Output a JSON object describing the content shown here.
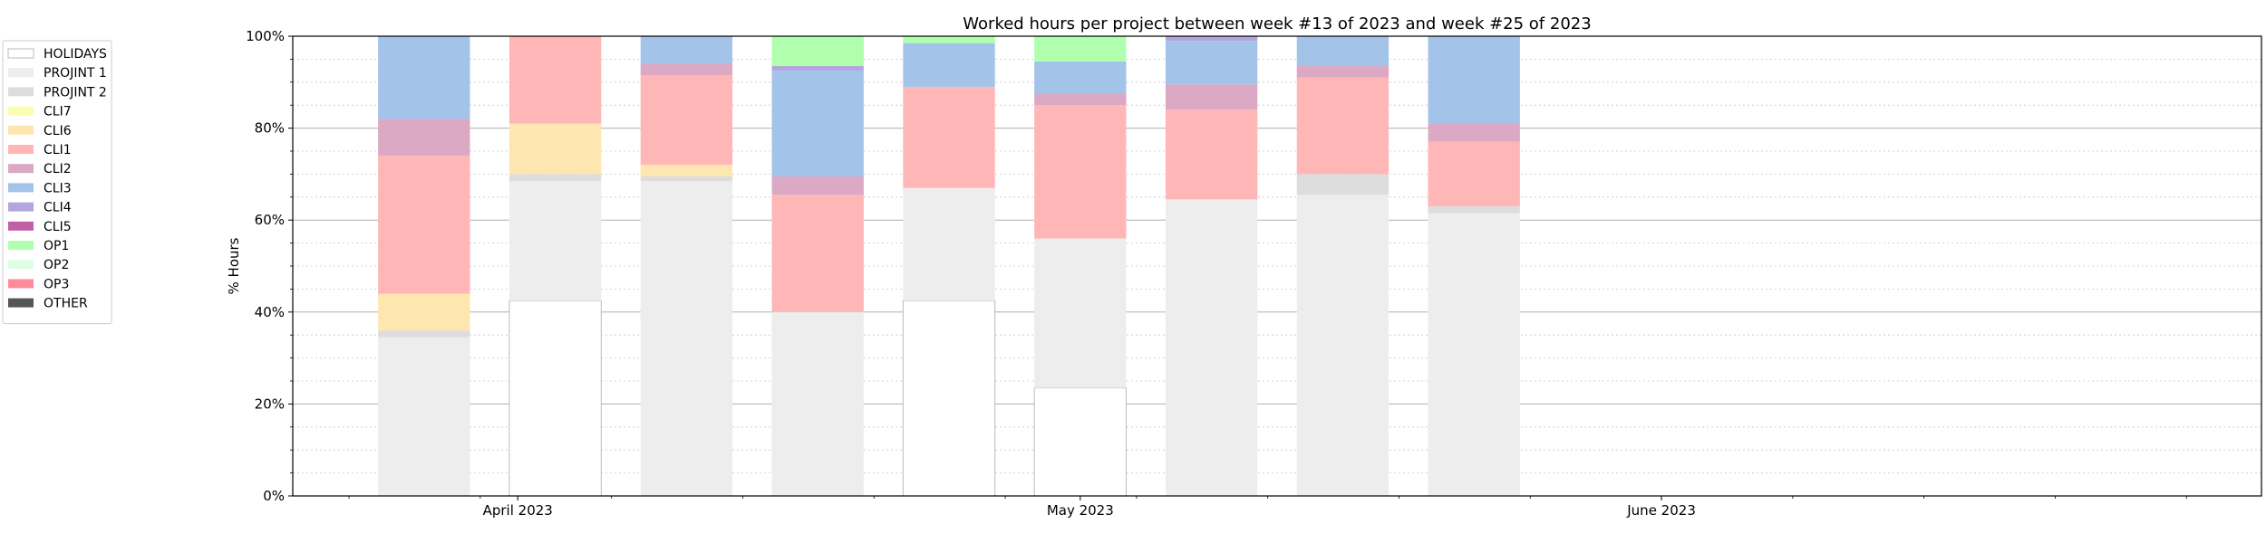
{
  "chart_data": {
    "type": "bar",
    "stacked": true,
    "title": "Worked hours per project between week #13 of 2023 and week #25 of 2023",
    "ylabel": "% Hours",
    "xlabel": "",
    "ylim": [
      0,
      100
    ],
    "y_ticks": [
      0,
      20,
      40,
      60,
      80,
      100
    ],
    "y_tick_labels": [
      "0%",
      "20%",
      "40%",
      "60%",
      "80%",
      "100%"
    ],
    "x_range": [
      "2023-03-20",
      "2023-07-03"
    ],
    "x_ticks": [
      {
        "date": "2023-04-01",
        "label": "April 2023"
      },
      {
        "date": "2023-05-01",
        "label": "May 2023"
      },
      {
        "date": "2023-06-01",
        "label": "June 2023"
      }
    ],
    "grid": {
      "major": true,
      "minor": true
    },
    "legend_position": "outside-left",
    "weeks": [
      "2023-03-27",
      "2023-04-03",
      "2023-04-10",
      "2023-04-17",
      "2023-04-24",
      "2023-05-01",
      "2023-05-08",
      "2023-05-15",
      "2023-05-22"
    ],
    "series": [
      {
        "name": "HOLIDAYS",
        "color": "#ffffff",
        "edge": "#bbbbbb",
        "values": [
          0,
          42.5,
          0,
          0,
          42.5,
          23.5,
          0,
          0,
          0
        ]
      },
      {
        "name": "PROJINT 1",
        "color": "#ededed",
        "values": [
          34.5,
          26,
          68.5,
          40,
          24.5,
          32.5,
          64.5,
          65.5,
          61.5
        ]
      },
      {
        "name": "PROJINT 2",
        "color": "#dddddd",
        "values": [
          1.5,
          1.5,
          1,
          0,
          0,
          0,
          0,
          4.5,
          1.5
        ]
      },
      {
        "name": "CLI7",
        "color": "#f8ffb0",
        "values": [
          0,
          0,
          0,
          0,
          0,
          0,
          0,
          0,
          0
        ]
      },
      {
        "name": "CLI6",
        "color": "#fde6b0",
        "values": [
          8,
          11,
          2.5,
          0,
          0,
          0,
          0,
          0,
          0
        ]
      },
      {
        "name": "CLI1",
        "color": "#ffb6b6",
        "values": [
          30,
          19,
          19.5,
          25.5,
          22,
          29,
          19.5,
          21,
          14
        ]
      },
      {
        "name": "CLI2",
        "color": "#dca9c4",
        "values": [
          8,
          0,
          2.5,
          4,
          0,
          2.5,
          5.5,
          2.5,
          4
        ]
      },
      {
        "name": "CLI3",
        "color": "#a3c4e8",
        "values": [
          18,
          0,
          6,
          23,
          9.5,
          7,
          9.5,
          6.5,
          19
        ]
      },
      {
        "name": "CLI4",
        "color": "#b3a6dc",
        "values": [
          0,
          0,
          0,
          1,
          0,
          0,
          1,
          0,
          0
        ]
      },
      {
        "name": "CLI5",
        "color": "#bf5fa6",
        "values": [
          0,
          0,
          0,
          0,
          0,
          0,
          0,
          0,
          0
        ]
      },
      {
        "name": "OP1",
        "color": "#afffaf",
        "values": [
          0,
          0,
          0,
          6.5,
          1.5,
          5.5,
          0,
          0,
          0
        ]
      },
      {
        "name": "OP2",
        "color": "#dcffe4",
        "values": [
          0,
          0,
          0,
          0,
          0,
          0,
          0,
          0,
          0
        ]
      },
      {
        "name": "OP3",
        "color": "#ff8c9a",
        "values": [
          0,
          0,
          0,
          0,
          0,
          0,
          0,
          0,
          0
        ]
      },
      {
        "name": "OTHER",
        "color": "#555555",
        "values": [
          0,
          0,
          0,
          0,
          0,
          0,
          0,
          0,
          0
        ]
      }
    ]
  }
}
